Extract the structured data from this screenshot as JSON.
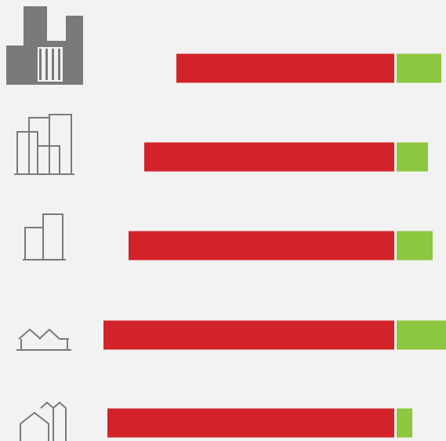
{
  "chart_data": {
    "type": "diverging-bar",
    "series": [
      {
        "color": "#d3232a",
        "values": [
          278,
          319,
          339,
          371,
          366
        ]
      },
      {
        "color": "#8dc63f",
        "values": [
          57,
          40,
          46,
          63,
          20
        ]
      }
    ]
  }
}
